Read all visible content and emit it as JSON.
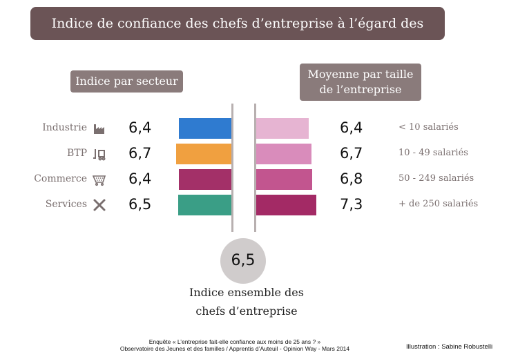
{
  "chart_data": [
    {
      "type": "bar",
      "title": "Indice par secteur",
      "categories": [
        "Industrie",
        "BTP",
        "Commerce",
        "Services"
      ],
      "values": [
        6.4,
        6.7,
        6.4,
        6.5
      ],
      "value_labels": [
        "6,4",
        "6,7",
        "6,4",
        "6,5"
      ],
      "icons": [
        "factory-icon",
        "forklift-icon",
        "shopping-cart-icon",
        "tools-icon"
      ],
      "colors": [
        "#2f7bd0",
        "#f0a040",
        "#a33068",
        "#3a9e86"
      ],
      "orientation": "horizontal-leftward"
    },
    {
      "type": "bar",
      "title": "Moyenne par taille de l’entreprise",
      "categories": [
        "< 10 salariés",
        "10 - 49 salariés",
        "50 - 249 salariés",
        "+ de 250 salariés"
      ],
      "values": [
        6.4,
        6.7,
        6.8,
        7.3
      ],
      "value_labels": [
        "6,4",
        "6,7",
        "6,8",
        "7,3"
      ],
      "colors": [
        "#e6b4d2",
        "#d98cbb",
        "#c2558f",
        "#a32a65"
      ],
      "orientation": "horizontal-rightward"
    }
  ],
  "header": {
    "title": "Indice de confiance des chefs d’entreprise à l’égard des jeunes"
  },
  "left_header": "Indice par secteur",
  "right_header": [
    "Moyenne par taille",
    "de l’entreprise"
  ],
  "total": {
    "value": "6,5",
    "label": [
      "Indice ensemble des",
      "chefs d’entreprise"
    ]
  },
  "footer": {
    "source": [
      "Enquête « L’entreprise fait-elle confiance aux moins de 25 ans ? »",
      "Observatoire des Jeunes et des familles / Apprentis d’Auteuil - Opinion Way - Mars 2014"
    ],
    "credit": "Illustration : Sabine Robustelli"
  }
}
